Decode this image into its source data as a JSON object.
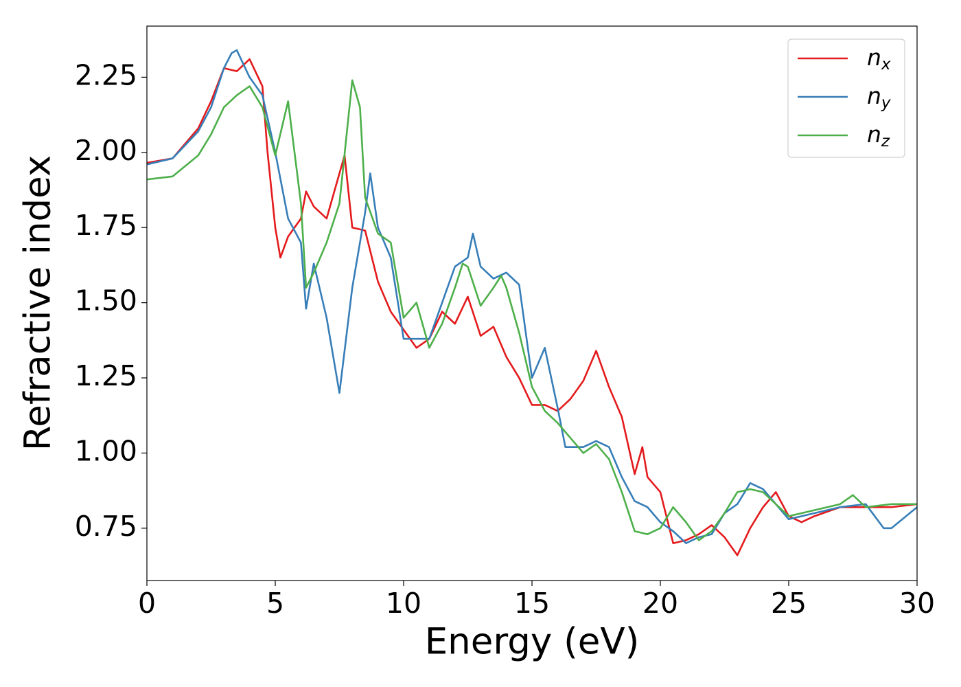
{
  "chart_data": {
    "type": "line",
    "xlabel": "Energy (eV)",
    "ylabel": "Refractive index",
    "xlim": [
      0,
      30
    ],
    "xticks": [
      0,
      5,
      10,
      15,
      20,
      25,
      30
    ],
    "ylim": [
      0.576,
      2.42
    ],
    "yticks": [
      0.75,
      {
        "value": 1,
        "label": "1.00"
      },
      1.25,
      {
        "value": 1.5,
        "label": "1.50"
      },
      1.75,
      {
        "value": 2,
        "label": "2.00"
      },
      2.25
    ],
    "legend": "upper right",
    "series": [
      {
        "name": "nx",
        "color": "#e41a1c",
        "x": [
          0,
          1,
          2,
          2.5,
          3,
          3.5,
          4,
          4.5,
          4.7,
          5,
          5.2,
          5.5,
          6,
          6.2,
          6.5,
          7,
          7.5,
          7.7,
          8,
          8.5,
          9,
          9.5,
          10,
          10.5,
          11,
          11.5,
          12,
          12.5,
          13,
          13.5,
          14,
          14.5,
          15,
          15.5,
          16,
          16.5,
          17,
          17.5,
          18,
          18.5,
          19,
          19.3,
          19.5,
          20,
          20.5,
          21,
          21.5,
          22,
          22.5,
          23,
          23.5,
          24,
          24.5,
          25,
          25.5,
          26,
          27,
          28,
          29,
          30
        ],
        "values": [
          1.965,
          1.98,
          2.08,
          2.17,
          2.28,
          2.27,
          2.31,
          2.22,
          2.0,
          1.75,
          1.65,
          1.72,
          1.78,
          1.87,
          1.82,
          1.78,
          1.93,
          1.99,
          1.75,
          1.74,
          1.57,
          1.47,
          1.41,
          1.35,
          1.38,
          1.47,
          1.43,
          1.52,
          1.39,
          1.42,
          1.32,
          1.25,
          1.16,
          1.16,
          1.14,
          1.18,
          1.24,
          1.34,
          1.22,
          1.12,
          0.93,
          1.02,
          0.92,
          0.87,
          0.7,
          0.71,
          0.73,
          0.76,
          0.72,
          0.66,
          0.75,
          0.82,
          0.87,
          0.79,
          0.77,
          0.79,
          0.82,
          0.82,
          0.82,
          0.83
        ]
      },
      {
        "name": "ny",
        "color": "#377eb8",
        "x": [
          0,
          1,
          2,
          2.5,
          3,
          3.3,
          3.5,
          4,
          4.5,
          5,
          5.5,
          6,
          6.2,
          6.5,
          7,
          7.3,
          7.5,
          8,
          8.5,
          8.7,
          9,
          9.5,
          10,
          10.5,
          11,
          11.5,
          12,
          12.5,
          12.7,
          13,
          13.5,
          14,
          14.5,
          15,
          15.5,
          16,
          16.3,
          17,
          17.5,
          18,
          18.5,
          19,
          19.5,
          20,
          20.5,
          21,
          21.5,
          22,
          22.5,
          23,
          23.5,
          24,
          24.5,
          25,
          25.5,
          26,
          27,
          28,
          28.7,
          29,
          30
        ],
        "values": [
          1.96,
          1.98,
          2.07,
          2.15,
          2.28,
          2.33,
          2.34,
          2.25,
          2.19,
          2.0,
          1.78,
          1.7,
          1.48,
          1.63,
          1.45,
          1.3,
          1.2,
          1.55,
          1.8,
          1.93,
          1.75,
          1.65,
          1.38,
          1.38,
          1.38,
          1.5,
          1.62,
          1.65,
          1.73,
          1.62,
          1.58,
          1.6,
          1.56,
          1.25,
          1.35,
          1.15,
          1.02,
          1.02,
          1.04,
          1.02,
          0.92,
          0.84,
          0.82,
          0.77,
          0.74,
          0.7,
          0.72,
          0.73,
          0.8,
          0.83,
          0.9,
          0.88,
          0.83,
          0.78,
          0.79,
          0.8,
          0.82,
          0.83,
          0.75,
          0.75,
          0.82
        ]
      },
      {
        "name": "nz",
        "color": "#4daf4a",
        "x": [
          0,
          1,
          2,
          2.5,
          3,
          3.5,
          4,
          4.5,
          5,
          5.5,
          6,
          6.2,
          6.5,
          7,
          7.5,
          8,
          8.3,
          8.5,
          9,
          9.5,
          10,
          10.5,
          11,
          11.5,
          12,
          12.3,
          12.5,
          13,
          13.5,
          13.8,
          14,
          14.5,
          15,
          15.5,
          16,
          16.5,
          17,
          17.5,
          18,
          18.5,
          19,
          19.5,
          20,
          20.5,
          21,
          21.5,
          22,
          22.5,
          23,
          23.5,
          24,
          24.5,
          25,
          26,
          27,
          27.5,
          28,
          29,
          30
        ],
        "values": [
          1.91,
          1.92,
          1.99,
          2.06,
          2.15,
          2.19,
          2.22,
          2.15,
          1.99,
          2.17,
          1.83,
          1.55,
          1.6,
          1.7,
          1.83,
          2.24,
          2.15,
          1.85,
          1.73,
          1.7,
          1.45,
          1.5,
          1.35,
          1.43,
          1.55,
          1.63,
          1.62,
          1.49,
          1.55,
          1.59,
          1.55,
          1.4,
          1.22,
          1.14,
          1.1,
          1.05,
          1.0,
          1.03,
          0.98,
          0.87,
          0.74,
          0.73,
          0.75,
          0.82,
          0.77,
          0.71,
          0.74,
          0.8,
          0.87,
          0.88,
          0.87,
          0.83,
          0.79,
          0.81,
          0.83,
          0.86,
          0.82,
          0.83,
          0.83
        ]
      }
    ]
  }
}
